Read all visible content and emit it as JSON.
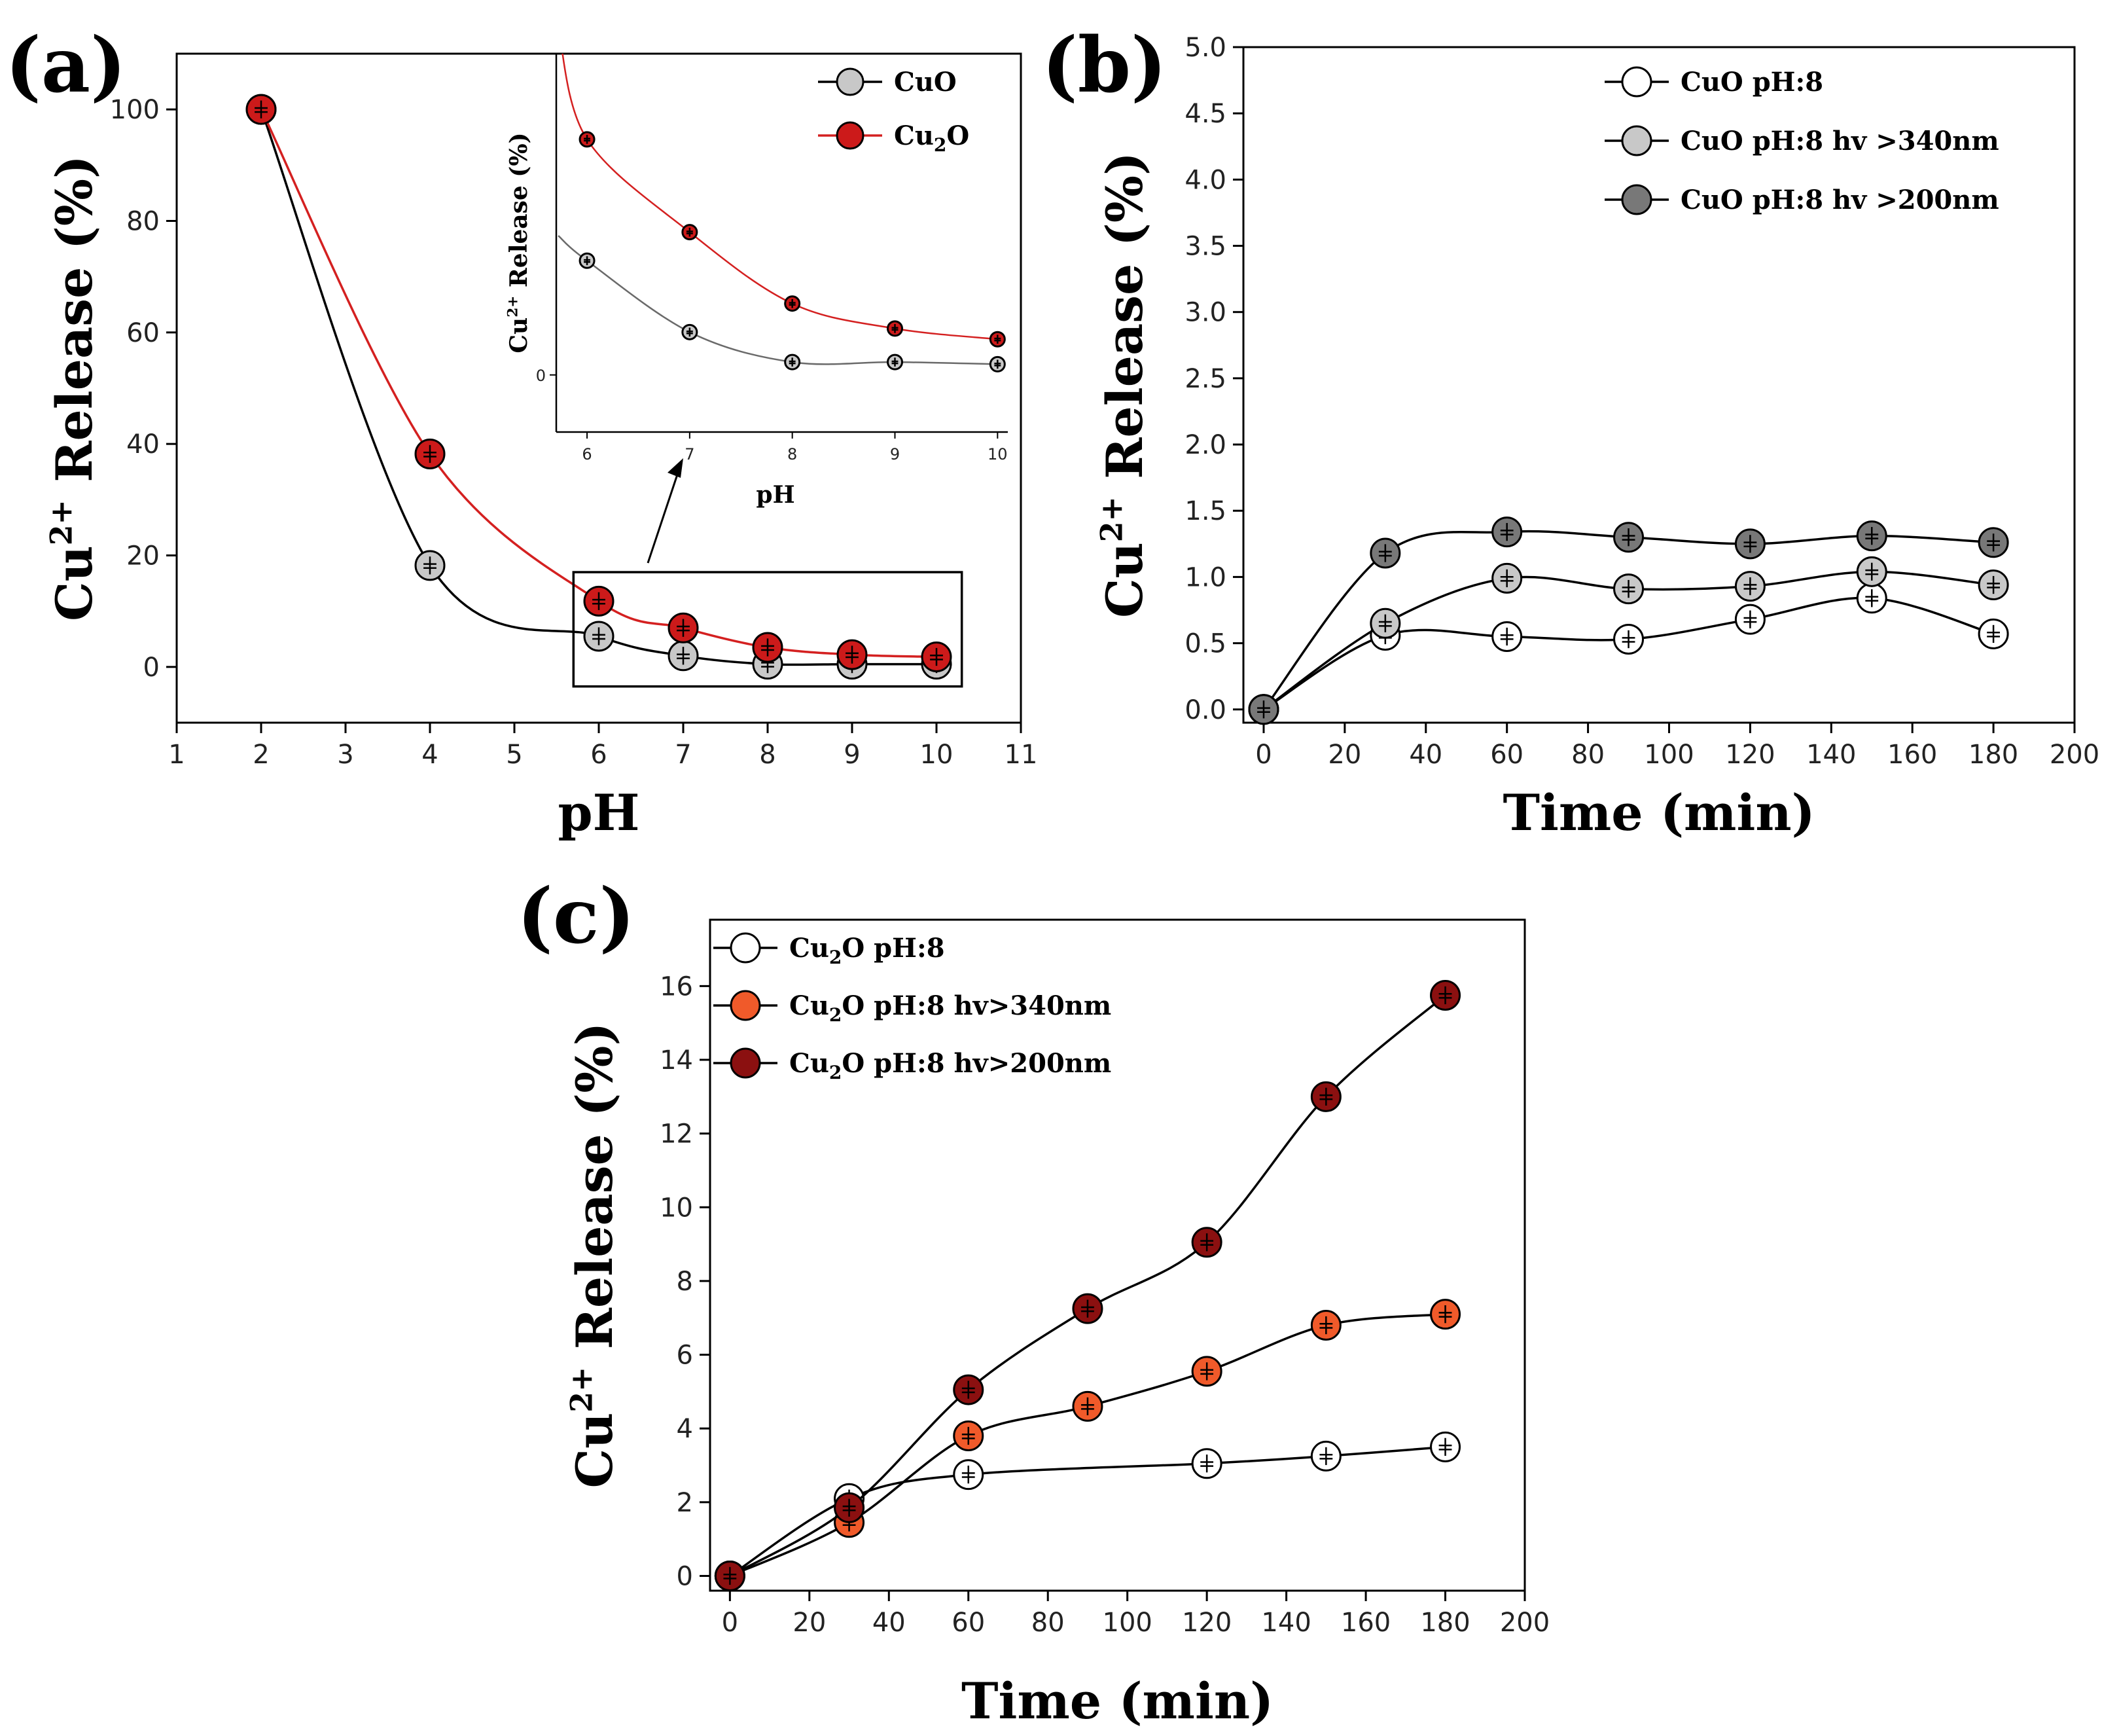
{
  "chart_data": [
    {
      "type": "line",
      "panel_label": "(a)",
      "title": "",
      "xlabel": "pH",
      "ylabel": {
        "main": "Cu",
        "sup": "2+",
        "rest": " Release (%)"
      },
      "xlim": [
        1,
        11
      ],
      "ylim": [
        -10,
        110
      ],
      "xticks": [
        1,
        2,
        3,
        4,
        5,
        6,
        7,
        8,
        9,
        10,
        11
      ],
      "yticks": [
        0,
        20,
        40,
        60,
        80,
        100
      ],
      "legend_position": "top-right",
      "series": [
        {
          "name": "CuO",
          "label": "CuO",
          "sub": "",
          "label_tail": "",
          "fill": "#c8c8c8",
          "line": "#000000",
          "x": [
            2,
            4,
            6,
            7,
            8,
            9,
            10
          ],
          "y": [
            100,
            18.2,
            5.5,
            2.0,
            0.5,
            0.5,
            0.5
          ]
        },
        {
          "name": "Cu2O",
          "label": "Cu",
          "sub": "2",
          "label_tail": "O",
          "fill": "#cc1a1a",
          "line": "#d42020",
          "x": [
            2,
            4,
            6,
            7,
            8,
            9,
            10
          ],
          "y": [
            100,
            38.2,
            11.8,
            7.0,
            3.5,
            2.2,
            1.8
          ]
        }
      ],
      "inset": {
        "xlabel": "pH",
        "ylabel": {
          "main": "Cu",
          "sup": "2+",
          "rest": " Release (%)"
        },
        "xlim": [
          5.7,
          10.1
        ],
        "ylim": [
          -0.8,
          4.5
        ],
        "xticks": [
          6,
          7,
          8,
          9,
          10
        ],
        "yticks": [
          0
        ],
        "series": [
          {
            "name": "CuO",
            "x": [
              6,
              7,
              8,
              9,
              10
            ],
            "y": [
              1.6,
              0.6,
              0.18,
              0.18,
              0.15
            ]
          },
          {
            "name": "Cu2O",
            "x": [
              6,
              7,
              8,
              9,
              10
            ],
            "y": [
              3.3,
              2.0,
              1.0,
              0.65,
              0.5
            ]
          }
        ]
      }
    },
    {
      "type": "line",
      "panel_label": "(b)",
      "title": "",
      "xlabel": "Time (min)",
      "ylabel": {
        "main": "Cu",
        "sup": "2+",
        "rest": " Release (%)"
      },
      "xlim": [
        -5,
        200
      ],
      "ylim": [
        -0.1,
        5.0
      ],
      "xticks": [
        0,
        20,
        40,
        60,
        80,
        100,
        120,
        140,
        160,
        180,
        200
      ],
      "yticks": [
        0.0,
        0.5,
        1.0,
        1.5,
        2.0,
        2.5,
        3.0,
        3.5,
        4.0,
        4.5,
        5.0
      ],
      "legend_position": "top-right",
      "series": [
        {
          "name": "CuO pH:8",
          "label": "CuO pH:8",
          "sub": "",
          "label_tail": "",
          "fill": "#ffffff",
          "line": "#000000",
          "x": [
            0,
            30,
            60,
            90,
            120,
            150,
            180
          ],
          "y": [
            0.0,
            0.56,
            0.55,
            0.53,
            0.68,
            0.84,
            0.57
          ]
        },
        {
          "name": "CuO pH:8 hv >340nm",
          "label": "CuO pH:8 hv >340nm",
          "sub": "",
          "label_tail": "",
          "fill": "#c8c8c8",
          "line": "#000000",
          "x": [
            0,
            30,
            60,
            90,
            120,
            150,
            180
          ],
          "y": [
            0.0,
            0.65,
            0.99,
            0.91,
            0.93,
            1.04,
            0.94
          ]
        },
        {
          "name": "CuO pH:8 hv >200nm",
          "label": "CuO pH:8 hv >200nm",
          "sub": "",
          "label_tail": "",
          "fill": "#787878",
          "line": "#000000",
          "x": [
            0,
            30,
            60,
            90,
            120,
            150,
            180
          ],
          "y": [
            0.0,
            1.18,
            1.34,
            1.3,
            1.25,
            1.31,
            1.26
          ]
        }
      ]
    },
    {
      "type": "line",
      "panel_label": "(c)",
      "title": "",
      "xlabel": "Time (min)",
      "ylabel": {
        "main": "Cu",
        "sup": "2+",
        "rest": " Release  (%)"
      },
      "xlim": [
        -5,
        200
      ],
      "ylim": [
        -0.4,
        17.8
      ],
      "xticks": [
        0,
        20,
        40,
        60,
        80,
        100,
        120,
        140,
        160,
        180,
        200
      ],
      "yticks": [
        0,
        2,
        4,
        6,
        8,
        10,
        12,
        14,
        16
      ],
      "legend_position": "top-left",
      "series": [
        {
          "name": "Cu2O pH:8",
          "label": "Cu",
          "sub": "2",
          "label_tail": "O pH:8",
          "fill": "#ffffff",
          "line": "#000000",
          "x": [
            0,
            30,
            60,
            90,
            120,
            150,
            180
          ],
          "y": [
            0.0,
            2.1,
            2.75,
            null,
            3.05,
            3.25,
            3.5
          ]
        },
        {
          "name": "Cu2O pH:8 hv>340nm",
          "label": "Cu",
          "sub": "2",
          "label_tail": "O pH:8 hv>340nm",
          "fill": "#f05a2a",
          "line": "#000000",
          "x": [
            0,
            30,
            60,
            90,
            120,
            150,
            180
          ],
          "y": [
            0.0,
            1.45,
            3.8,
            4.6,
            5.55,
            6.8,
            7.1
          ]
        },
        {
          "name": "Cu2O pH:8 hv>200nm",
          "label": "Cu",
          "sub": "2",
          "label_tail": "O pH:8 hv>200nm",
          "fill": "#8b1010",
          "line": "#000000",
          "x": [
            0,
            30,
            60,
            90,
            120,
            150,
            180
          ],
          "y": [
            0.0,
            1.85,
            5.05,
            7.25,
            9.05,
            13.0,
            15.75
          ]
        }
      ]
    }
  ]
}
